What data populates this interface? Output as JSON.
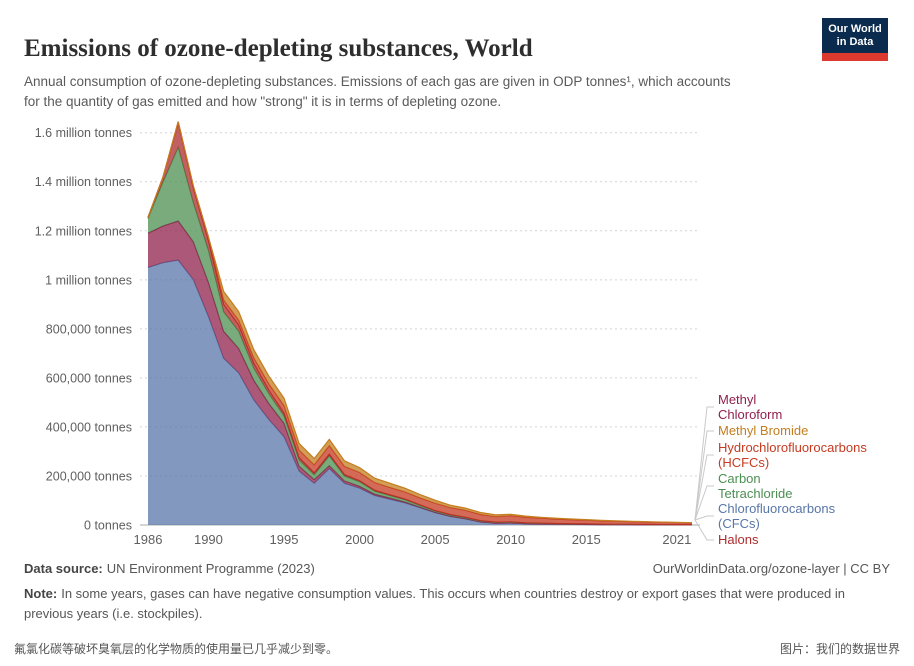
{
  "header": {
    "title": "Emissions of ozone-depleting substances, World",
    "subtitle": "Annual consumption of ozone-depleting substances. Emissions of each gas are given in ODP tonnes¹, which accounts for the quantity of gas emitted and how \"strong\" it is in terms of depleting ozone.",
    "logo": {
      "line1": "Our World",
      "line2": "in Data",
      "bg": "#0A2B4E",
      "accent": "#DC3A2F"
    }
  },
  "chart_data": {
    "type": "area",
    "stacked": true,
    "title": "Emissions of ozone-depleting substances, World",
    "xlabel": "",
    "ylabel": "ODP tonnes",
    "xlim": [
      1986,
      2022
    ],
    "ylim": [
      0,
      1660000
    ],
    "grid": "dotted-horizontal",
    "legend_position": "right",
    "x": [
      1986,
      1987,
      1988,
      1989,
      1990,
      1991,
      1992,
      1993,
      1994,
      1995,
      1996,
      1997,
      1998,
      1999,
      2000,
      2001,
      2002,
      2003,
      2004,
      2005,
      2006,
      2007,
      2008,
      2009,
      2010,
      2011,
      2012,
      2013,
      2014,
      2015,
      2016,
      2017,
      2018,
      2019,
      2020,
      2021,
      2022
    ],
    "x_ticks": [
      1986,
      1990,
      1995,
      2000,
      2005,
      2010,
      2015,
      2021
    ],
    "y_ticks": [
      {
        "value": 0,
        "label": "0 tonnes"
      },
      {
        "value": 200000,
        "label": "200,000 tonnes"
      },
      {
        "value": 400000,
        "label": "400,000 tonnes"
      },
      {
        "value": 600000,
        "label": "600,000 tonnes"
      },
      {
        "value": 800000,
        "label": "800,000 tonnes"
      },
      {
        "value": 1000000,
        "label": "1 million tonnes"
      },
      {
        "value": 1200000,
        "label": "1.2 million tonnes"
      },
      {
        "value": 1400000,
        "label": "1.4 million tonnes"
      },
      {
        "value": 1600000,
        "label": "1.6 million tonnes"
      }
    ],
    "stack_order": "bottom-to-top",
    "series": [
      {
        "name": "Chlorofluorocarbons (CFCs)",
        "color": "#5876A8",
        "values": [
          1050000,
          1070000,
          1080000,
          1000000,
          850000,
          680000,
          620000,
          510000,
          430000,
          360000,
          220000,
          170000,
          230000,
          170000,
          150000,
          120000,
          105000,
          90000,
          70000,
          50000,
          35000,
          25000,
          12000,
          7000,
          8000,
          5000,
          4000,
          3000,
          2500,
          2000,
          1500,
          1200,
          1000,
          800,
          600,
          500,
          400
        ]
      },
      {
        "name": "Methyl Chloroform",
        "color": "#90204C",
        "values": [
          140000,
          150000,
          160000,
          155000,
          140000,
          110000,
          100000,
          80000,
          65000,
          55000,
          20000,
          15000,
          12000,
          10000,
          8000,
          6000,
          5000,
          4000,
          3000,
          2000,
          1500,
          1200,
          1000,
          800,
          700,
          600,
          500,
          400,
          350,
          300,
          250,
          200,
          180,
          160,
          140,
          120,
          100
        ]
      },
      {
        "name": "Carbon Tetrachloride",
        "color": "#4C8F52",
        "values": [
          60000,
          180000,
          300000,
          160000,
          130000,
          80000,
          70000,
          50000,
          40000,
          30000,
          25000,
          20000,
          40000,
          20000,
          18000,
          12000,
          10000,
          9000,
          7000,
          5000,
          4500,
          4000,
          3500,
          3000,
          3000,
          2500,
          2200,
          2000,
          1800,
          1600,
          1400,
          1200,
          1100,
          1000,
          900,
          800,
          700
        ]
      },
      {
        "name": "Halons",
        "color": "#AE2C2C",
        "values": [
          5000,
          20000,
          100000,
          60000,
          40000,
          30000,
          25000,
          20000,
          15000,
          12000,
          10000,
          8000,
          7000,
          6000,
          5000,
          4000,
          3500,
          3000,
          2500,
          2000,
          1800,
          1600,
          1400,
          1200,
          1100,
          1000,
          900,
          800,
          700,
          600,
          550,
          500,
          450,
          400,
          350,
          300,
          250
        ]
      },
      {
        "name": "Hydrochlorofluorocarbons (HCFCs)",
        "color": "#C63A21",
        "values": [
          0,
          0,
          5000,
          8000,
          15000,
          18000,
          20000,
          22000,
          25000,
          30000,
          30000,
          32000,
          35000,
          33000,
          33000,
          31000,
          30000,
          29000,
          28000,
          30000,
          28000,
          28000,
          25000,
          22000,
          25000,
          22000,
          20000,
          18000,
          16000,
          15000,
          13000,
          12000,
          11000,
          10000,
          9000,
          8000,
          7000
        ]
      },
      {
        "name": "Methyl Bromide",
        "color": "#C47D1F",
        "values": [
          0,
          0,
          0,
          0,
          0,
          35000,
          35000,
          33000,
          32000,
          30000,
          28000,
          26000,
          25000,
          23000,
          20000,
          18000,
          17000,
          15000,
          14000,
          12000,
          10000,
          9000,
          8000,
          7000,
          6000,
          5000,
          4000,
          3500,
          3000,
          2500,
          2000,
          1800,
          1500,
          1200,
          1000,
          900,
          800
        ]
      }
    ]
  },
  "legend": {
    "items": [
      {
        "label": "Methyl Chloroform",
        "color": "#90204C"
      },
      {
        "label": "Methyl Bromide",
        "color": "#C47D1F"
      },
      {
        "label": "Hydrochlorofluorocarbons (HCFCs)",
        "color": "#C63A21"
      },
      {
        "label": "Carbon Tetrachloride",
        "color": "#4C8F52"
      },
      {
        "label": "Chlorofluorocarbons (CFCs)",
        "color": "#5876A8"
      },
      {
        "label": "Halons",
        "color": "#AE2C2C"
      }
    ]
  },
  "footer": {
    "source_label": "Data source:",
    "source_text": "UN Environment Programme (2023)",
    "link_text": "OurWorldinData.org/ozone-layer | CC BY",
    "note_label": "Note:",
    "note_text": "In some years, gases can have negative consumption values. This occurs when countries destroy or export gases that were produced in previous years (i.e. stockpiles)."
  },
  "caption": {
    "left": "氟氯化碳等破坏臭氧层的化学物质的使用量已几乎减少到零。",
    "right": "图片：我们的数据世界"
  }
}
